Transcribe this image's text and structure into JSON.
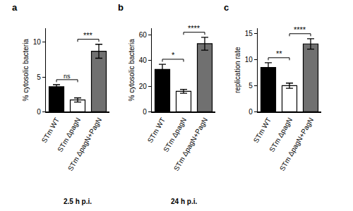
{
  "chart_data": [
    {
      "type": "bar",
      "title": "a",
      "ylabel": "% cytosolic bacteria",
      "categories": [
        "STm WT",
        "STm ΔpagN",
        "STm ΔpagN+PagN"
      ],
      "values": [
        3.6,
        1.7,
        8.7
      ],
      "errors": [
        0.3,
        0.3,
        1.0
      ],
      "colors": [
        "#000000",
        "#ffffff",
        "#707070"
      ],
      "ylim": [
        0,
        12
      ],
      "yticks": [
        0,
        5,
        10
      ],
      "grid": false,
      "comparisons": [
        {
          "pair": [
            0,
            1
          ],
          "label": "ns"
        },
        {
          "pair": [
            1,
            2
          ],
          "label": "***"
        }
      ],
      "annotations": [
        "2.5 h p.i."
      ]
    },
    {
      "type": "bar",
      "title": "b",
      "ylabel": "% cytosolic bacteria",
      "categories": [
        "STm WT",
        "STm ΔpagN",
        "STm ΔpagN+PagN"
      ],
      "values": [
        33,
        16,
        53
      ],
      "errors": [
        4,
        1.5,
        5
      ],
      "colors": [
        "#000000",
        "#ffffff",
        "#707070"
      ],
      "ylim": [
        0,
        65
      ],
      "yticks": [
        0,
        20,
        40,
        60
      ],
      "grid": false,
      "comparisons": [
        {
          "pair": [
            0,
            1
          ],
          "label": "*"
        },
        {
          "pair": [
            1,
            2
          ],
          "label": "****"
        }
      ],
      "annotations": [
        "24 h p.i."
      ]
    },
    {
      "type": "bar",
      "title": "c",
      "ylabel": "replication rate",
      "categories": [
        "STm WT",
        "STm ΔpagN",
        "STm ΔpagN+PagN"
      ],
      "values": [
        8.5,
        5.0,
        13.0
      ],
      "errors": [
        0.9,
        0.5,
        1.0
      ],
      "colors": [
        "#000000",
        "#ffffff",
        "#707070"
      ],
      "ylim": [
        0,
        16
      ],
      "yticks": [
        0,
        5,
        10,
        15
      ],
      "grid": false,
      "comparisons": [
        {
          "pair": [
            0,
            1
          ],
          "label": "**"
        },
        {
          "pair": [
            1,
            2
          ],
          "label": "****"
        }
      ],
      "annotations": []
    }
  ]
}
